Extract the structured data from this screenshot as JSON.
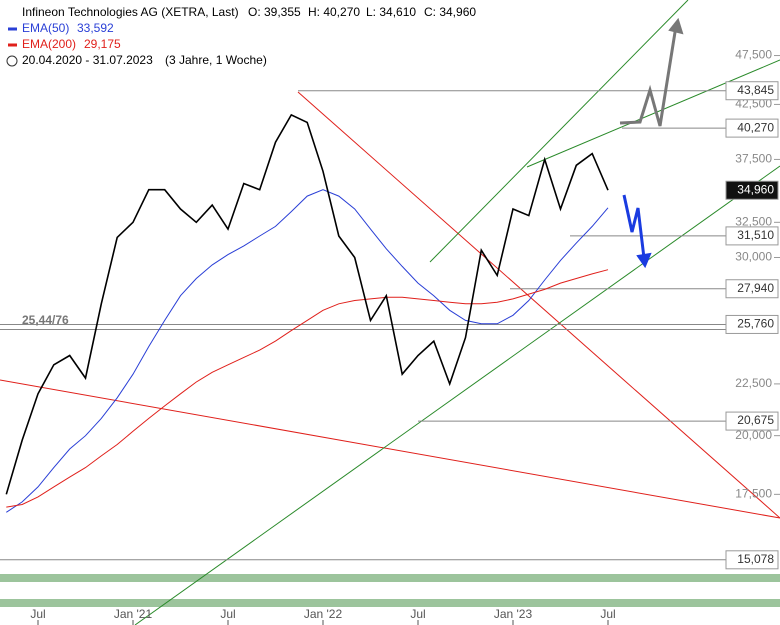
{
  "chart_data": {
    "type": "line",
    "title": "Infineon Technologies AG (XETRA, Last)",
    "ohlc": [
      "O: 39,355",
      "H: 40,270",
      "L: 34,610",
      "C: 34,960"
    ],
    "period": "20.04.2020 - 31.07.2023",
    "period_note": "(3 Jahre, 1 Woche)",
    "log_scale": true,
    "categories": [
      null,
      null,
      "Jul",
      null,
      null,
      null,
      null,
      null,
      "Jan '21",
      null,
      null,
      null,
      null,
      null,
      "Jul",
      null,
      null,
      null,
      null,
      null,
      "Jan '22",
      null,
      null,
      null,
      null,
      null,
      "Jul",
      null,
      null,
      null,
      null,
      null,
      "Jan '23",
      null,
      null,
      null,
      null,
      null,
      "Jul"
    ],
    "color": "#000000",
    "values": [
      17.5,
      19.8,
      22.0,
      23.5,
      24.0,
      22.8,
      27.0,
      31.4,
      32.5,
      35.0,
      35.0,
      33.5,
      32.5,
      33.8,
      32.0,
      35.5,
      35.0,
      39.0,
      41.5,
      40.8,
      36.5,
      31.5,
      30.0,
      26.0,
      27.5,
      23.0,
      24.0,
      24.8,
      22.5,
      25.0,
      30.5,
      28.8,
      33.5,
      33.0,
      37.5,
      33.5,
      37.0,
      38.0,
      34.96
    ],
    "series": [
      {
        "name": "EMA(50)",
        "color": "#2a3fd6",
        "last_label": "33,592",
        "values": [
          16.8,
          17.2,
          17.8,
          18.6,
          19.4,
          20.0,
          20.8,
          21.8,
          23.0,
          24.5,
          26.0,
          27.5,
          28.6,
          29.5,
          30.2,
          30.8,
          31.5,
          32.2,
          33.3,
          34.5,
          35.0,
          34.5,
          33.5,
          32.0,
          30.6,
          29.4,
          28.3,
          27.5,
          26.6,
          26.0,
          25.8,
          25.8,
          26.3,
          27.2,
          28.5,
          29.8,
          31.0,
          32.2,
          33.592
        ]
      },
      {
        "name": "EMA(200)",
        "color": "#e0201b",
        "last_label": "29,175",
        "values": [
          17.0,
          17.1,
          17.4,
          17.8,
          18.2,
          18.6,
          19.1,
          19.6,
          20.2,
          20.8,
          21.4,
          22.0,
          22.6,
          23.1,
          23.5,
          23.9,
          24.3,
          24.8,
          25.4,
          26.0,
          26.6,
          27.0,
          27.2,
          27.3,
          27.4,
          27.4,
          27.3,
          27.2,
          27.1,
          27.0,
          27.0,
          27.1,
          27.3,
          27.6,
          27.9,
          28.3,
          28.6,
          28.9,
          29.175
        ]
      }
    ],
    "ylim": [
      13.76,
      53.9
    ],
    "yticks": [
      {
        "value": 17.5,
        "label": "17,500"
      },
      {
        "value": 20,
        "label": "20,000"
      },
      {
        "value": 22.5,
        "label": "22,500"
      },
      {
        "value": 30,
        "label": "30,000"
      },
      {
        "value": 32.5,
        "label": "32,500"
      },
      {
        "value": 37.5,
        "label": "37,500"
      },
      {
        "value": 42.5,
        "label": "42,500"
      },
      {
        "value": 47.5,
        "label": "47,500"
      }
    ],
    "levels": [
      {
        "value": 43.845,
        "label": "43,845"
      },
      {
        "value": 40.27,
        "label": "40,270"
      },
      {
        "value": 34.96,
        "label": "34,960"
      },
      {
        "value": 31.51,
        "label": "31,510"
      },
      {
        "value": 27.94,
        "label": "27,940"
      },
      {
        "value": 25.76,
        "label": "25,760"
      },
      {
        "value": 20.675,
        "label": "20,675"
      },
      {
        "value": 15.078,
        "label": "15,078"
      }
    ],
    "annotation": "25,44/76"
  }
}
